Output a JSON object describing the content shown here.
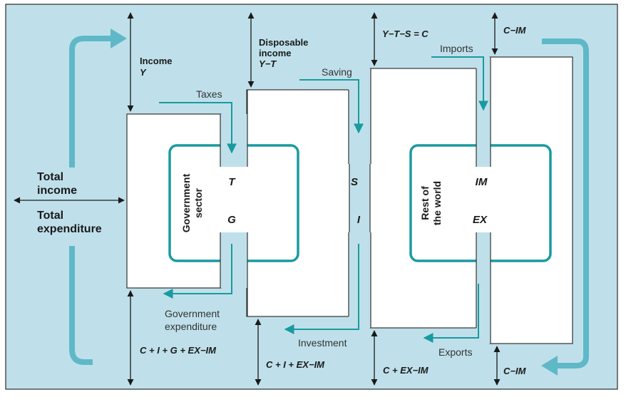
{
  "colors": {
    "background": "#bfe0ea",
    "sector_box": "#ffffff",
    "inner_border": "#1a9aa0",
    "flow_arrow": "#1a9aa0",
    "big_arrow": "#5fb8c8",
    "measure_arrow": "#1a1a1a"
  },
  "total": {
    "income_line1": "Total",
    "income_line2": "income",
    "expenditure_line1": "Total",
    "expenditure_line2": "expenditure"
  },
  "top_measures": {
    "income_label": "Income",
    "income_symbol": "Y",
    "disposable_line1": "Disposable",
    "disposable_line2": "income",
    "disposable_formula": "Y−T",
    "saving_identity": "Y−T−S = C",
    "consumption_top": "C−IM"
  },
  "bottom_measures": {
    "m1": "C + I + G + EX−IM",
    "m2": "C + I + EX−IM",
    "m3": "C + EX−IM",
    "m4": "C−IM"
  },
  "flows": {
    "taxes": "Taxes",
    "saving": "Saving",
    "imports": "Imports",
    "gov_exp_line1": "Government",
    "gov_exp_line2": "expenditure",
    "investment": "Investment",
    "exports": "Exports"
  },
  "sectors": {
    "government_line1": "Government",
    "government_line2": "sector",
    "rest_line1": "Rest of",
    "rest_line2": "the world"
  },
  "symbols": {
    "T": "T",
    "G": "G",
    "S": "S",
    "I": "I",
    "IM": "IM",
    "EX": "EX"
  }
}
